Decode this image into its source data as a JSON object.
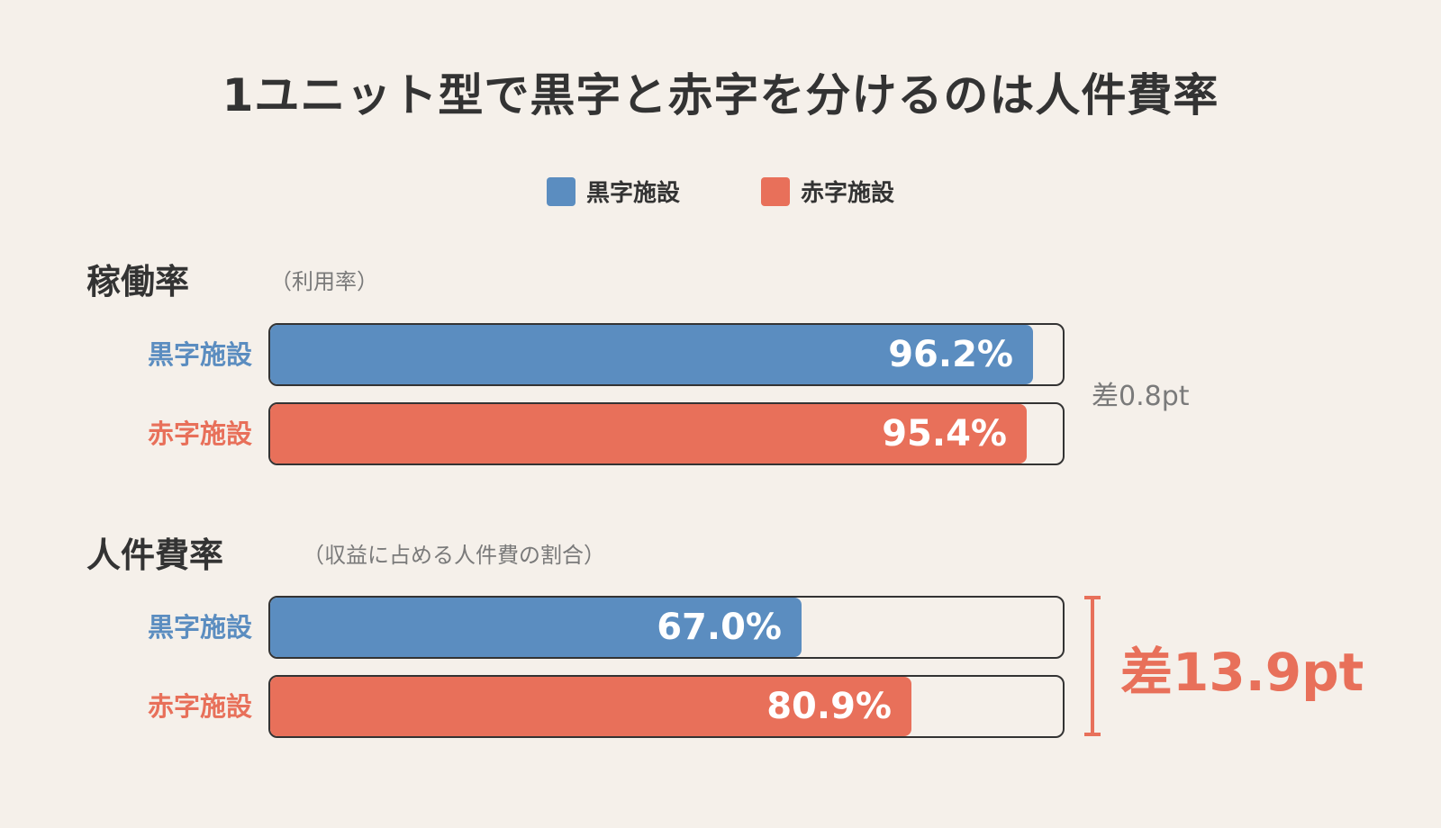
{
  "title": "1ユニット型で黒字と赤字を分けるのは人件費率",
  "legend": [
    {
      "label": "黒字施設",
      "color": "#5b8dc0"
    },
    {
      "label": "赤字施設",
      "color": "#e8705a"
    }
  ],
  "colors": {
    "profit": "#5b8dc0",
    "loss": "#e8705a",
    "text": "#333333",
    "muted": "#7a7a7a",
    "background": "#f5f0ea"
  },
  "chart_data": [
    {
      "type": "bar",
      "orientation": "horizontal",
      "title": "稼働率",
      "subtitle": "（利用率）",
      "categories": [
        "黒字施設",
        "赤字施設"
      ],
      "values": [
        96.2,
        95.4
      ],
      "value_labels": [
        "96.2%",
        "95.4%"
      ],
      "xlim": [
        0,
        100
      ],
      "difference": "差0.8pt",
      "grid": false
    },
    {
      "type": "bar",
      "orientation": "horizontal",
      "title": "人件費率",
      "subtitle": "（収益に占める人件費の割合）",
      "categories": [
        "黒字施設",
        "赤字施設"
      ],
      "values": [
        67.0,
        80.9
      ],
      "value_labels": [
        "67.0%",
        "80.9%"
      ],
      "xlim": [
        0,
        100
      ],
      "difference": "差13.9pt",
      "grid": false
    }
  ]
}
